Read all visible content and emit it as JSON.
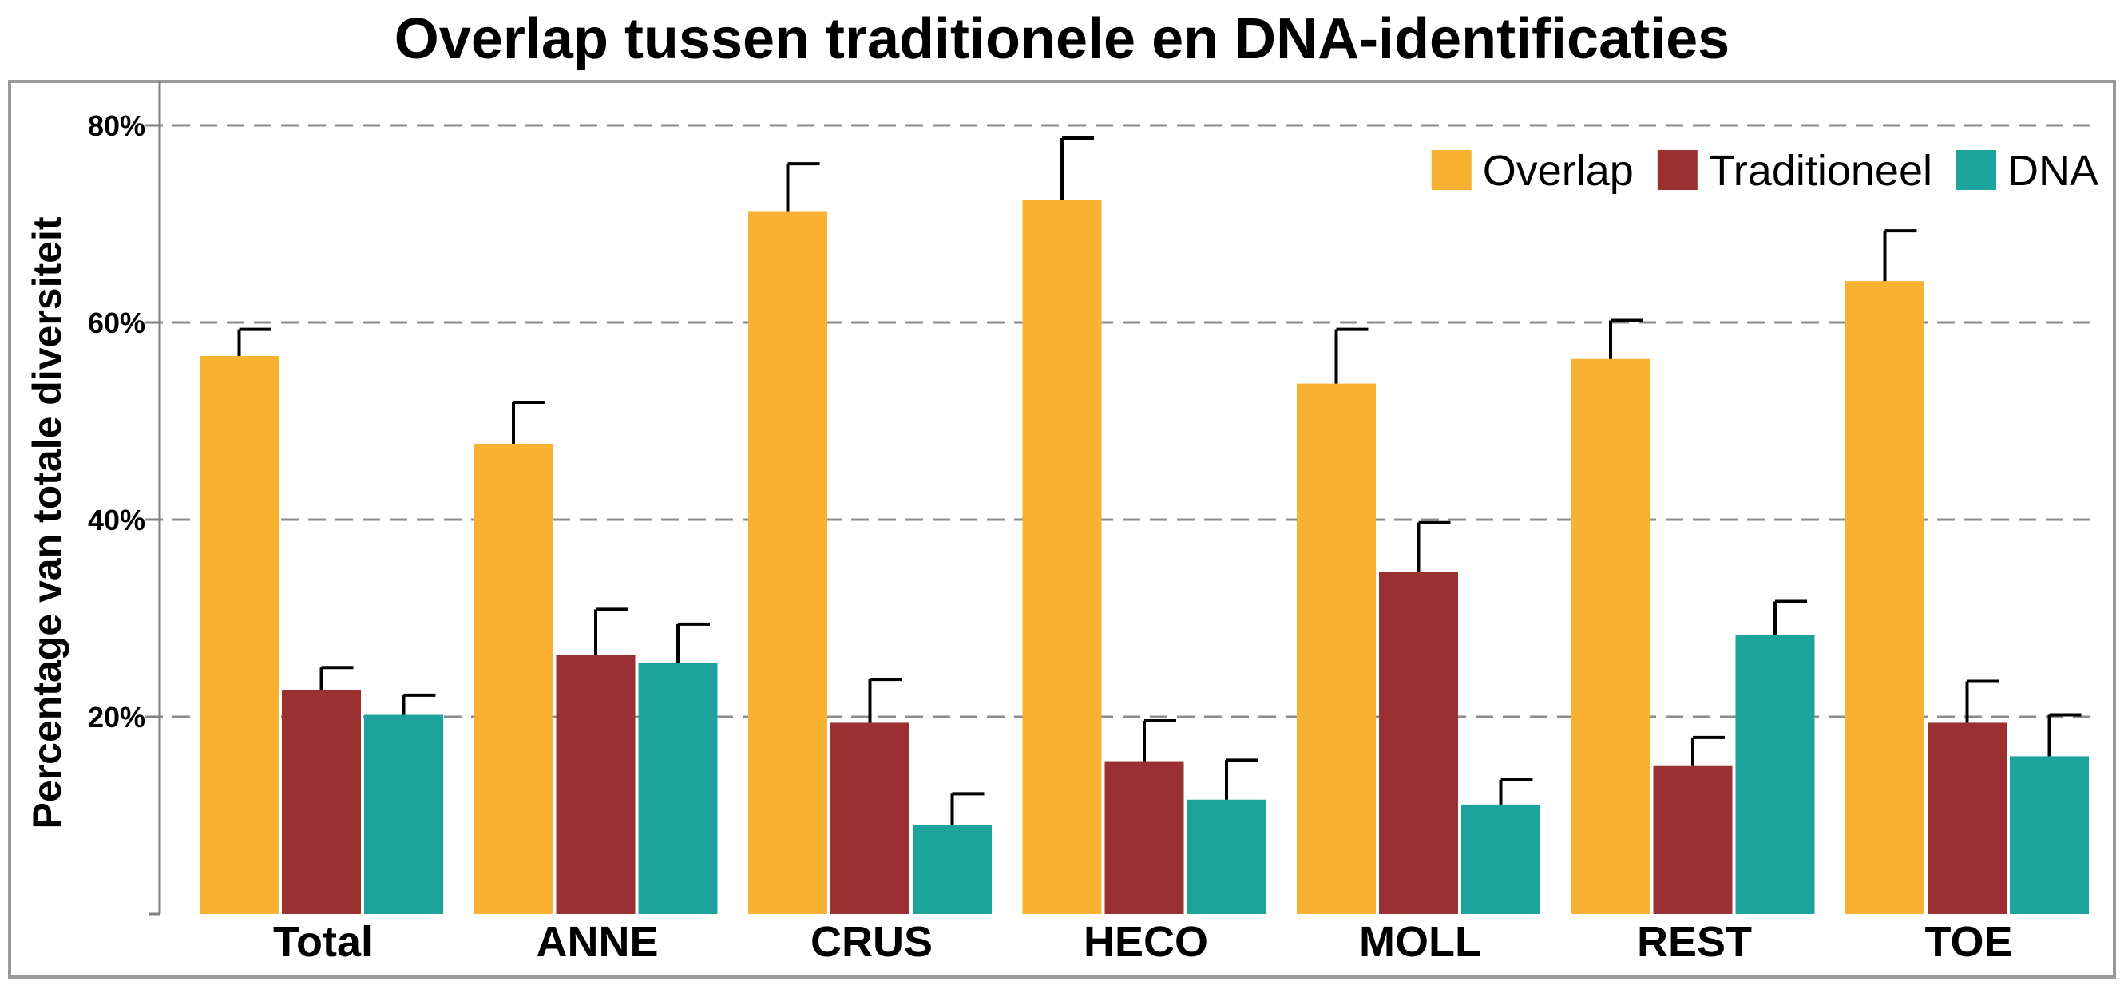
{
  "chart_data": {
    "type": "bar",
    "title": "Overlap tussen traditionele en DNA-identificaties",
    "xlabel": "",
    "ylabel": "Percentage van totale diversiteit",
    "categories": [
      "Total",
      "ANNE",
      "CRUS",
      "HECO",
      "MOLL",
      "REST",
      "TOE"
    ],
    "yticks": [
      20,
      40,
      60,
      80
    ],
    "ytick_labels": [
      "20%",
      "40%",
      "60%",
      "80%"
    ],
    "ylim": [
      0,
      82
    ],
    "grid": "horizontal dashed",
    "legend_position": "top-right",
    "series": [
      {
        "name": "Overlap",
        "color": "#F8B131",
        "values": [
          56.6,
          47.7,
          71.3,
          72.4,
          53.8,
          56.3,
          64.2
        ],
        "error_upper": [
          59.3,
          51.9,
          76.1,
          78.7,
          59.3,
          60.2,
          69.3
        ]
      },
      {
        "name": "Traditioneel",
        "color": "#9B3033",
        "values": [
          22.7,
          26.3,
          19.4,
          15.5,
          34.7,
          15.0,
          19.4
        ],
        "error_upper": [
          25.0,
          30.9,
          23.8,
          19.6,
          39.7,
          17.9,
          23.6
        ]
      },
      {
        "name": "DNA",
        "color": "#1BA39C",
        "values": [
          20.2,
          25.5,
          9.0,
          11.6,
          11.1,
          28.3,
          16.0
        ],
        "error_upper": [
          22.2,
          29.4,
          12.2,
          15.6,
          13.6,
          31.7,
          20.2
        ]
      }
    ]
  },
  "style": {
    "frame_color": "#9A9A9A",
    "grid_color": "#8C8C8C",
    "axis_color": "#808080"
  }
}
